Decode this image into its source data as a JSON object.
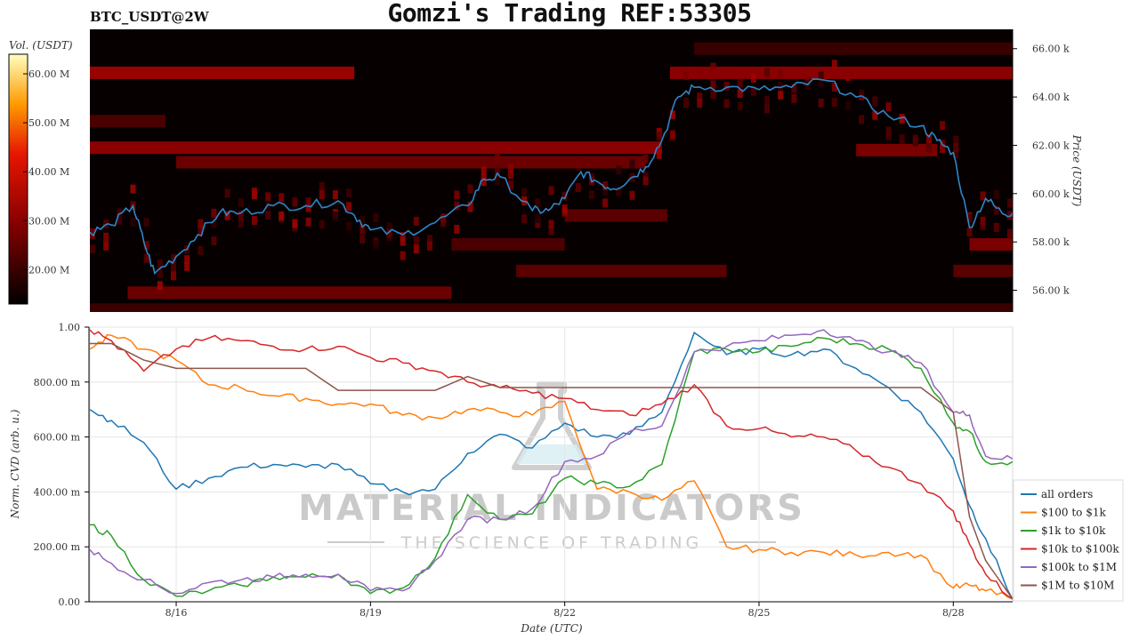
{
  "title": "Gomzi's Trading REF:53305",
  "ticker": "BTC_USDT@2W",
  "colors": {
    "price_line": "#2f86c8",
    "heat_background": "#060000",
    "series": [
      "#1f77b4",
      "#ff7f0e",
      "#2ca02c",
      "#d62728",
      "#9467bd",
      "#8c564b"
    ]
  },
  "watermark": {
    "brand": "MATERIAL INDICATORS",
    "tagline": "THE SCIENCE OF TRADING",
    "logo": "flask-logo"
  },
  "chart_data": [
    {
      "type": "heatmap",
      "colorbar_label": "Vol. (USDT)",
      "colorbar_ticks": [
        "20.00 M",
        "30.00 M",
        "40.00 M",
        "50.00 M",
        "60.00 M"
      ],
      "colorbar_values": [
        20,
        30,
        40,
        50,
        60
      ],
      "colorbar_range": [
        13,
        64
      ],
      "ylabel": "Price (USDT)",
      "y_ticks": [
        "56.00 k",
        "58.00 k",
        "60.00 k",
        "62.00 k",
        "64.00 k",
        "66.00 k"
      ],
      "y_tick_values": [
        56000,
        58000,
        60000,
        62000,
        64000,
        66000
      ],
      "ylim": [
        55100,
        66800
      ],
      "x_range": [
        "8/14 16:00",
        "8/28 22:00"
      ],
      "bands": [
        {
          "price": 65000,
          "x_start": "8/14 16:00",
          "x_end": "8/18 18:00",
          "vol": 32
        },
        {
          "price": 65000,
          "x_start": "8/23 15:00",
          "x_end": "8/28 22:00",
          "vol": 30
        },
        {
          "price": 66000,
          "x_start": "8/24 00:00",
          "x_end": "8/28 22:00",
          "vol": 20
        },
        {
          "price": 63000,
          "x_start": "8/14 16:00",
          "x_end": "8/15 20:00",
          "vol": 22
        },
        {
          "price": 61900,
          "x_start": "8/14 16:00",
          "x_end": "8/23 12:00",
          "vol": 30
        },
        {
          "price": 61300,
          "x_start": "8/16 00:00",
          "x_end": "8/23 06:00",
          "vol": 26
        },
        {
          "price": 61800,
          "x_start": "8/26 12:00",
          "x_end": "8/27 18:00",
          "vol": 28
        },
        {
          "price": 59100,
          "x_start": "8/22 00:00",
          "x_end": "8/23 14:00",
          "vol": 24
        },
        {
          "price": 57900,
          "x_start": "8/20 06:00",
          "x_end": "8/22 00:00",
          "vol": 22
        },
        {
          "price": 57900,
          "x_start": "8/28 06:00",
          "x_end": "8/28 22:00",
          "vol": 28
        },
        {
          "price": 56800,
          "x_start": "8/21 06:00",
          "x_end": "8/24 12:00",
          "vol": 24
        },
        {
          "price": 56800,
          "x_start": "8/28 00:00",
          "x_end": "8/28 22:00",
          "vol": 24
        },
        {
          "price": 55900,
          "x_start": "8/15 06:00",
          "x_end": "8/20 06:00",
          "vol": 26
        },
        {
          "price": 55200,
          "x_start": "8/14 16:00",
          "x_end": "8/28 22:00",
          "vol": 20
        }
      ],
      "price_series": {
        "name": "price",
        "x": [
          "8/14 16:00",
          "8/15 00:00",
          "8/15 08:00",
          "8/15 12:00",
          "8/15 16:00",
          "8/16 00:00",
          "8/16 08:00",
          "8/16 16:00",
          "8/17 00:00",
          "8/17 12:00",
          "8/18 00:00",
          "8/18 12:00",
          "8/18 18:00",
          "8/19 00:00",
          "8/19 12:00",
          "8/20 00:00",
          "8/20 12:00",
          "8/20 18:00",
          "8/21 00:00",
          "8/21 12:00",
          "8/21 18:00",
          "8/22 00:00",
          "8/22 06:00",
          "8/22 12:00",
          "8/22 18:00",
          "8/23 00:00",
          "8/23 06:00",
          "8/23 12:00",
          "8/23 18:00",
          "8/24 00:00",
          "8/24 12:00",
          "8/25 00:00",
          "8/25 12:00",
          "8/26 00:00",
          "8/26 12:00",
          "8/27 00:00",
          "8/27 12:00",
          "8/27 18:00",
          "8/28 00:00",
          "8/28 06:00",
          "8/28 12:00",
          "8/28 18:00",
          "8/28 22:00"
        ],
        "y": [
          58400,
          58700,
          59500,
          58000,
          56700,
          57400,
          58300,
          59200,
          59200,
          59500,
          59500,
          59700,
          59100,
          58500,
          58300,
          58800,
          59500,
          60600,
          60700,
          59300,
          59300,
          59800,
          60900,
          60500,
          60200,
          60600,
          61100,
          62200,
          64000,
          64400,
          64400,
          64300,
          64400,
          64700,
          64000,
          63200,
          62800,
          62200,
          61700,
          58600,
          59800,
          59200,
          59200
        ]
      }
    },
    {
      "type": "line",
      "xlabel": "Date (UTC)",
      "ylabel": "Norm. CVD (arb. u.)",
      "y_ticks": [
        "0.00",
        "200.00 m",
        "400.00 m",
        "600.00 m",
        "800.00 m",
        "1.00"
      ],
      "y_tick_values": [
        0,
        0.2,
        0.4,
        0.6,
        0.8,
        1.0
      ],
      "ylim": [
        0,
        1.0
      ],
      "x_ticks": [
        "8/16",
        "8/19",
        "8/22",
        "8/25",
        "8/28"
      ],
      "x_tick_values": [
        "8/16",
        "8/19",
        "8/22",
        "8/25",
        "8/28"
      ],
      "x_range": [
        "8/14 16:00",
        "8/28 22:00"
      ],
      "grid": true,
      "legend_position": "right",
      "x": [
        "8/14 16:00",
        "8/15 00:00",
        "8/15 12:00",
        "8/16 00:00",
        "8/16 12:00",
        "8/17 00:00",
        "8/17 12:00",
        "8/18 00:00",
        "8/18 12:00",
        "8/19 00:00",
        "8/19 12:00",
        "8/20 00:00",
        "8/20 12:00",
        "8/21 00:00",
        "8/21 12:00",
        "8/22 00:00",
        "8/22 12:00",
        "8/23 00:00",
        "8/23 12:00",
        "8/24 00:00",
        "8/24 12:00",
        "8/25 00:00",
        "8/25 12:00",
        "8/26 00:00",
        "8/26 12:00",
        "8/27 00:00",
        "8/27 12:00",
        "8/28 00:00",
        "8/28 06:00",
        "8/28 12:00",
        "8/28 22:00"
      ],
      "series": [
        {
          "name": "all orders",
          "values": [
            0.7,
            0.66,
            0.58,
            0.41,
            0.45,
            0.49,
            0.5,
            0.49,
            0.5,
            0.43,
            0.4,
            0.41,
            0.54,
            0.61,
            0.56,
            0.65,
            0.6,
            0.61,
            0.69,
            0.98,
            0.9,
            0.92,
            0.9,
            0.92,
            0.85,
            0.78,
            0.69,
            0.52,
            0.35,
            0.23,
            0.01
          ]
        },
        {
          "name": "$100 to $1k",
          "values": [
            0.92,
            0.97,
            0.92,
            0.88,
            0.79,
            0.78,
            0.75,
            0.74,
            0.72,
            0.72,
            0.68,
            0.67,
            0.7,
            0.69,
            0.68,
            0.73,
            0.41,
            0.4,
            0.37,
            0.44,
            0.2,
            0.19,
            0.18,
            0.18,
            0.17,
            0.18,
            0.17,
            0.05,
            0.06,
            0.04,
            0.01
          ]
        },
        {
          "name": "$1k to $10k",
          "values": [
            0.28,
            0.24,
            0.08,
            0.02,
            0.04,
            0.06,
            0.09,
            0.09,
            0.1,
            0.03,
            0.05,
            0.16,
            0.39,
            0.3,
            0.32,
            0.45,
            0.43,
            0.42,
            0.5,
            0.91,
            0.92,
            0.91,
            0.93,
            0.96,
            0.94,
            0.92,
            0.85,
            0.65,
            0.62,
            0.51,
            0.51
          ]
        },
        {
          "name": "$10k to $100k",
          "values": [
            0.99,
            0.95,
            0.84,
            0.92,
            0.96,
            0.95,
            0.93,
            0.92,
            0.93,
            0.89,
            0.87,
            0.84,
            0.8,
            0.78,
            0.76,
            0.74,
            0.7,
            0.68,
            0.72,
            0.79,
            0.64,
            0.63,
            0.6,
            0.6,
            0.55,
            0.49,
            0.43,
            0.33,
            0.21,
            0.1,
            0.01
          ]
        },
        {
          "name": "$100k to $1M",
          "values": [
            0.19,
            0.14,
            0.08,
            0.03,
            0.07,
            0.08,
            0.09,
            0.1,
            0.1,
            0.04,
            0.04,
            0.15,
            0.3,
            0.3,
            0.34,
            0.51,
            0.53,
            0.62,
            0.64,
            0.91,
            0.93,
            0.95,
            0.97,
            0.99,
            0.95,
            0.91,
            0.87,
            0.69,
            0.68,
            0.53,
            0.52
          ]
        },
        {
          "name": "$1M to $10M",
          "values": [
            0.94,
            0.94,
            0.88,
            0.85,
            0.85,
            0.85,
            0.85,
            0.85,
            0.77,
            0.77,
            0.77,
            0.77,
            0.82,
            0.78,
            0.78,
            0.78,
            0.78,
            0.78,
            0.78,
            0.78,
            0.78,
            0.78,
            0.78,
            0.78,
            0.78,
            0.78,
            0.78,
            0.69,
            0.31,
            0.15,
            0.01
          ]
        }
      ]
    }
  ]
}
